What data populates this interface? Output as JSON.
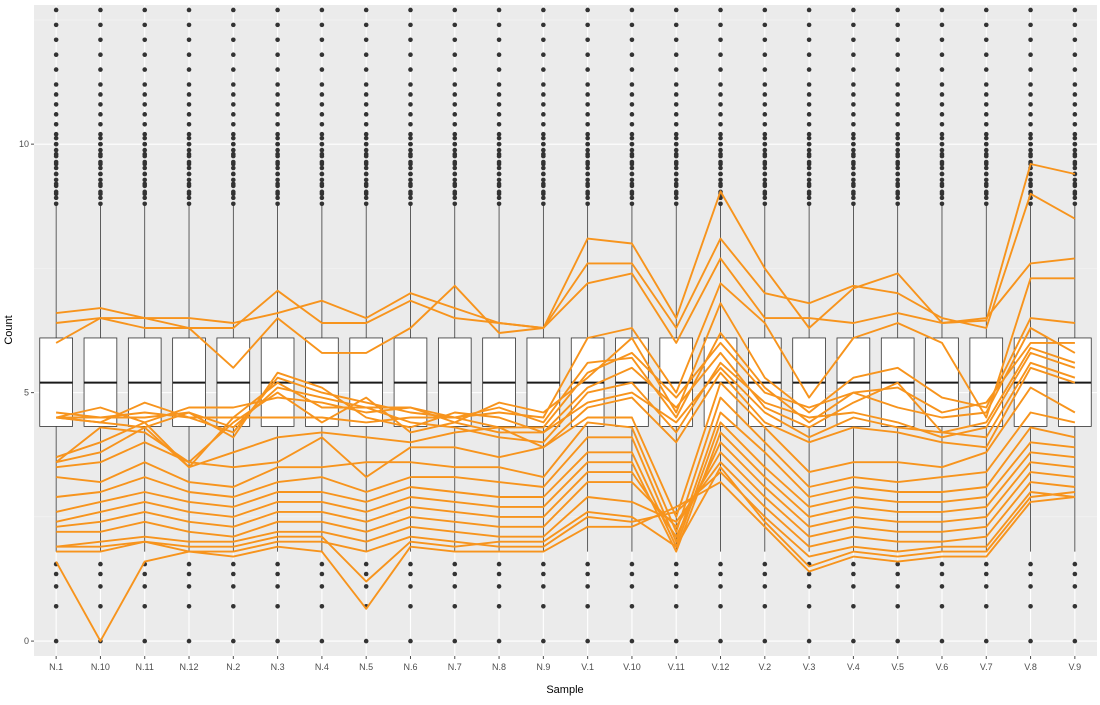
{
  "chart_data": {
    "type": "box",
    "title": "",
    "xlabel": "Sample",
    "ylabel": "Count",
    "ylim": [
      -0.3,
      12.8
    ],
    "yticks": [
      0,
      5,
      10
    ],
    "grid": true,
    "panel_background": "#ebebeb",
    "categories": [
      "N.1",
      "N.10",
      "N.11",
      "N.12",
      "N.2",
      "N.3",
      "N.4",
      "N.5",
      "N.6",
      "N.7",
      "N.8",
      "N.9",
      "V.1",
      "V.10",
      "V.11",
      "V.12",
      "V.2",
      "V.3",
      "V.4",
      "V.5",
      "V.6",
      "V.7",
      "V.8",
      "V.9"
    ],
    "box_stats": {
      "q1": 4.32,
      "median": 5.2,
      "q3": 6.1,
      "whisker_low": 1.8,
      "whisker_high": 8.8
    },
    "outliers_high": [
      9.0,
      9.2,
      9.4,
      9.6,
      9.8,
      10.0,
      10.2,
      10.4,
      10.6,
      10.8,
      11.0,
      11.2,
      11.5,
      11.8,
      12.1,
      12.4,
      12.7
    ],
    "outliers_low": [
      1.55,
      1.35,
      1.1,
      0.7,
      0.0
    ],
    "line_color": "#f7941d",
    "series": [
      {
        "values": [
          6.6,
          6.7,
          6.5,
          6.5,
          6.4,
          6.6,
          6.85,
          6.5,
          7.0,
          6.7,
          6.4,
          6.3,
          8.1,
          8.0,
          6.5,
          9.05,
          7.5,
          6.3,
          7.1,
          7.4,
          6.4,
          6.45,
          9.6,
          9.4
        ]
      },
      {
        "values": [
          6.4,
          6.5,
          6.3,
          6.3,
          6.3,
          7.05,
          6.4,
          6.4,
          6.85,
          6.5,
          6.4,
          6.3,
          7.6,
          7.6,
          6.3,
          8.1,
          7.0,
          6.8,
          7.15,
          7.0,
          6.5,
          6.3,
          9.0,
          8.5
        ]
      },
      {
        "values": [
          6.0,
          6.5,
          6.5,
          6.3,
          5.5,
          6.5,
          5.8,
          5.8,
          6.3,
          7.15,
          6.2,
          6.3,
          7.2,
          7.4,
          6.0,
          7.7,
          6.5,
          6.5,
          6.4,
          6.6,
          6.4,
          6.5,
          7.6,
          7.7
        ]
      },
      {
        "values": [
          4.5,
          4.5,
          4.6,
          4.5,
          4.5,
          4.5,
          4.5,
          4.4,
          4.5,
          4.5,
          4.6,
          4.5,
          6.1,
          6.3,
          5.0,
          7.2,
          6.4,
          4.9,
          6.1,
          6.4,
          6.0,
          4.5,
          7.3,
          7.3
        ]
      },
      {
        "values": [
          4.5,
          4.7,
          4.4,
          4.7,
          4.7,
          4.9,
          4.8,
          4.6,
          4.7,
          4.4,
          4.8,
          4.6,
          5.3,
          6.1,
          4.6,
          6.8,
          5.3,
          4.6,
          5.3,
          5.5,
          4.9,
          4.7,
          6.5,
          6.4
        ]
      },
      {
        "values": [
          4.6,
          4.5,
          4.5,
          4.6,
          4.3,
          5.1,
          4.9,
          4.7,
          4.7,
          4.5,
          4.7,
          4.4,
          5.6,
          5.7,
          4.5,
          6.2,
          5.1,
          4.4,
          5.0,
          5.1,
          4.6,
          4.8,
          6.0,
          6.0
        ]
      },
      {
        "values": [
          4.5,
          4.4,
          4.8,
          4.5,
          4.2,
          5.3,
          5.0,
          4.8,
          4.6,
          4.5,
          4.3,
          4.3,
          5.4,
          5.8,
          4.9,
          6.0,
          5.0,
          4.7,
          5.0,
          4.7,
          4.5,
          4.6,
          6.3,
          5.8
        ]
      },
      {
        "values": [
          4.5,
          4.4,
          4.3,
          4.6,
          4.1,
          5.4,
          5.1,
          4.5,
          4.3,
          4.6,
          4.5,
          4.2,
          5.1,
          5.5,
          4.7,
          5.8,
          4.7,
          4.3,
          4.8,
          5.2,
          4.2,
          4.4,
          5.9,
          5.6
        ]
      },
      {
        "values": [
          3.7,
          4.0,
          4.4,
          3.5,
          4.5,
          5.2,
          4.7,
          4.7,
          4.4,
          4.3,
          4.1,
          4.0,
          5.0,
          5.2,
          4.2,
          5.6,
          4.8,
          4.5,
          4.6,
          4.4,
          4.1,
          4.3,
          5.8,
          5.5
        ]
      },
      {
        "values": [
          3.6,
          4.3,
          4.2,
          3.6,
          4.4,
          5.0,
          4.4,
          4.9,
          4.2,
          4.4,
          4.2,
          4.2,
          4.8,
          5.0,
          4.4,
          5.5,
          4.6,
          4.1,
          4.5,
          4.3,
          4.2,
          4.1,
          5.6,
          5.3
        ]
      },
      {
        "values": [
          3.6,
          3.8,
          4.3,
          3.5,
          3.8,
          4.1,
          4.2,
          4.1,
          4.0,
          4.2,
          4.3,
          3.9,
          4.7,
          4.9,
          4.0,
          5.4,
          4.4,
          4.0,
          4.3,
          4.2,
          4.0,
          3.9,
          5.5,
          5.2
        ]
      },
      {
        "values": [
          3.5,
          3.6,
          4.0,
          3.6,
          3.5,
          3.6,
          4.1,
          3.3,
          3.9,
          3.9,
          3.7,
          3.9,
          4.5,
          4.5,
          2.5,
          5.2,
          4.3,
          3.4,
          3.6,
          3.6,
          3.5,
          3.8,
          5.1,
          4.6
        ]
      },
      {
        "values": [
          3.3,
          3.2,
          3.6,
          3.2,
          3.1,
          3.5,
          3.5,
          3.6,
          3.6,
          3.5,
          3.5,
          3.3,
          4.4,
          4.3,
          2.2,
          4.9,
          4.0,
          3.1,
          3.3,
          3.2,
          3.3,
          3.4,
          4.6,
          4.4
        ]
      },
      {
        "values": [
          2.9,
          3.0,
          3.3,
          3.0,
          2.9,
          3.2,
          3.3,
          3.0,
          3.3,
          3.3,
          3.2,
          3.1,
          4.1,
          4.1,
          2.0,
          4.6,
          3.8,
          2.9,
          3.1,
          3.0,
          3.0,
          3.1,
          4.3,
          4.1
        ]
      },
      {
        "values": [
          2.6,
          2.8,
          3.0,
          2.8,
          2.7,
          3.0,
          3.0,
          2.8,
          3.1,
          3.0,
          2.9,
          2.9,
          3.8,
          3.8,
          1.9,
          4.4,
          3.5,
          2.7,
          2.9,
          2.8,
          2.8,
          2.9,
          4.0,
          3.9
        ]
      },
      {
        "values": [
          2.4,
          2.6,
          2.8,
          2.6,
          2.5,
          2.8,
          2.8,
          2.6,
          2.9,
          2.8,
          2.7,
          2.7,
          3.6,
          3.6,
          1.8,
          4.2,
          3.3,
          2.5,
          2.7,
          2.6,
          2.6,
          2.7,
          3.8,
          3.7
        ]
      },
      {
        "values": [
          2.3,
          2.4,
          2.6,
          2.4,
          2.3,
          2.6,
          2.6,
          2.4,
          2.7,
          2.6,
          2.5,
          2.5,
          3.4,
          3.4,
          2.1,
          4.0,
          3.1,
          2.3,
          2.5,
          2.4,
          2.4,
          2.5,
          3.6,
          3.5
        ]
      },
      {
        "values": [
          2.2,
          2.2,
          2.4,
          2.2,
          2.1,
          2.4,
          2.4,
          2.2,
          2.5,
          2.4,
          2.3,
          2.3,
          3.2,
          3.2,
          2.3,
          3.8,
          2.9,
          2.1,
          2.3,
          2.2,
          2.2,
          2.3,
          3.4,
          3.3
        ]
      },
      {
        "values": [
          1.9,
          2.0,
          2.1,
          2.0,
          2.0,
          2.2,
          2.2,
          2.0,
          2.3,
          2.2,
          2.1,
          2.1,
          2.9,
          2.8,
          2.4,
          3.6,
          2.7,
          1.9,
          2.1,
          2.0,
          2.0,
          2.1,
          3.2,
          3.1
        ]
      },
      {
        "values": [
          1.8,
          1.8,
          2.0,
          1.8,
          1.8,
          2.0,
          2.0,
          1.8,
          2.1,
          2.0,
          1.9,
          1.9,
          2.5,
          2.4,
          2.6,
          3.4,
          2.5,
          1.7,
          1.9,
          1.8,
          1.9,
          1.9,
          3.0,
          2.9
        ]
      },
      {
        "values": [
          1.6,
          0.0,
          1.6,
          1.8,
          1.7,
          1.9,
          1.8,
          0.65,
          1.9,
          1.8,
          1.8,
          1.8,
          2.3,
          2.3,
          2.7,
          3.2,
          2.3,
          1.4,
          1.7,
          1.6,
          1.7,
          1.7,
          2.8,
          2.9
        ]
      },
      {
        "values": [
          1.9,
          1.9,
          2.0,
          1.9,
          1.9,
          2.1,
          2.1,
          1.2,
          2.0,
          1.9,
          2.0,
          2.0,
          2.6,
          2.5,
          1.9,
          3.5,
          2.4,
          1.5,
          1.8,
          1.7,
          1.8,
          1.8,
          2.9,
          3.0
        ]
      }
    ]
  }
}
